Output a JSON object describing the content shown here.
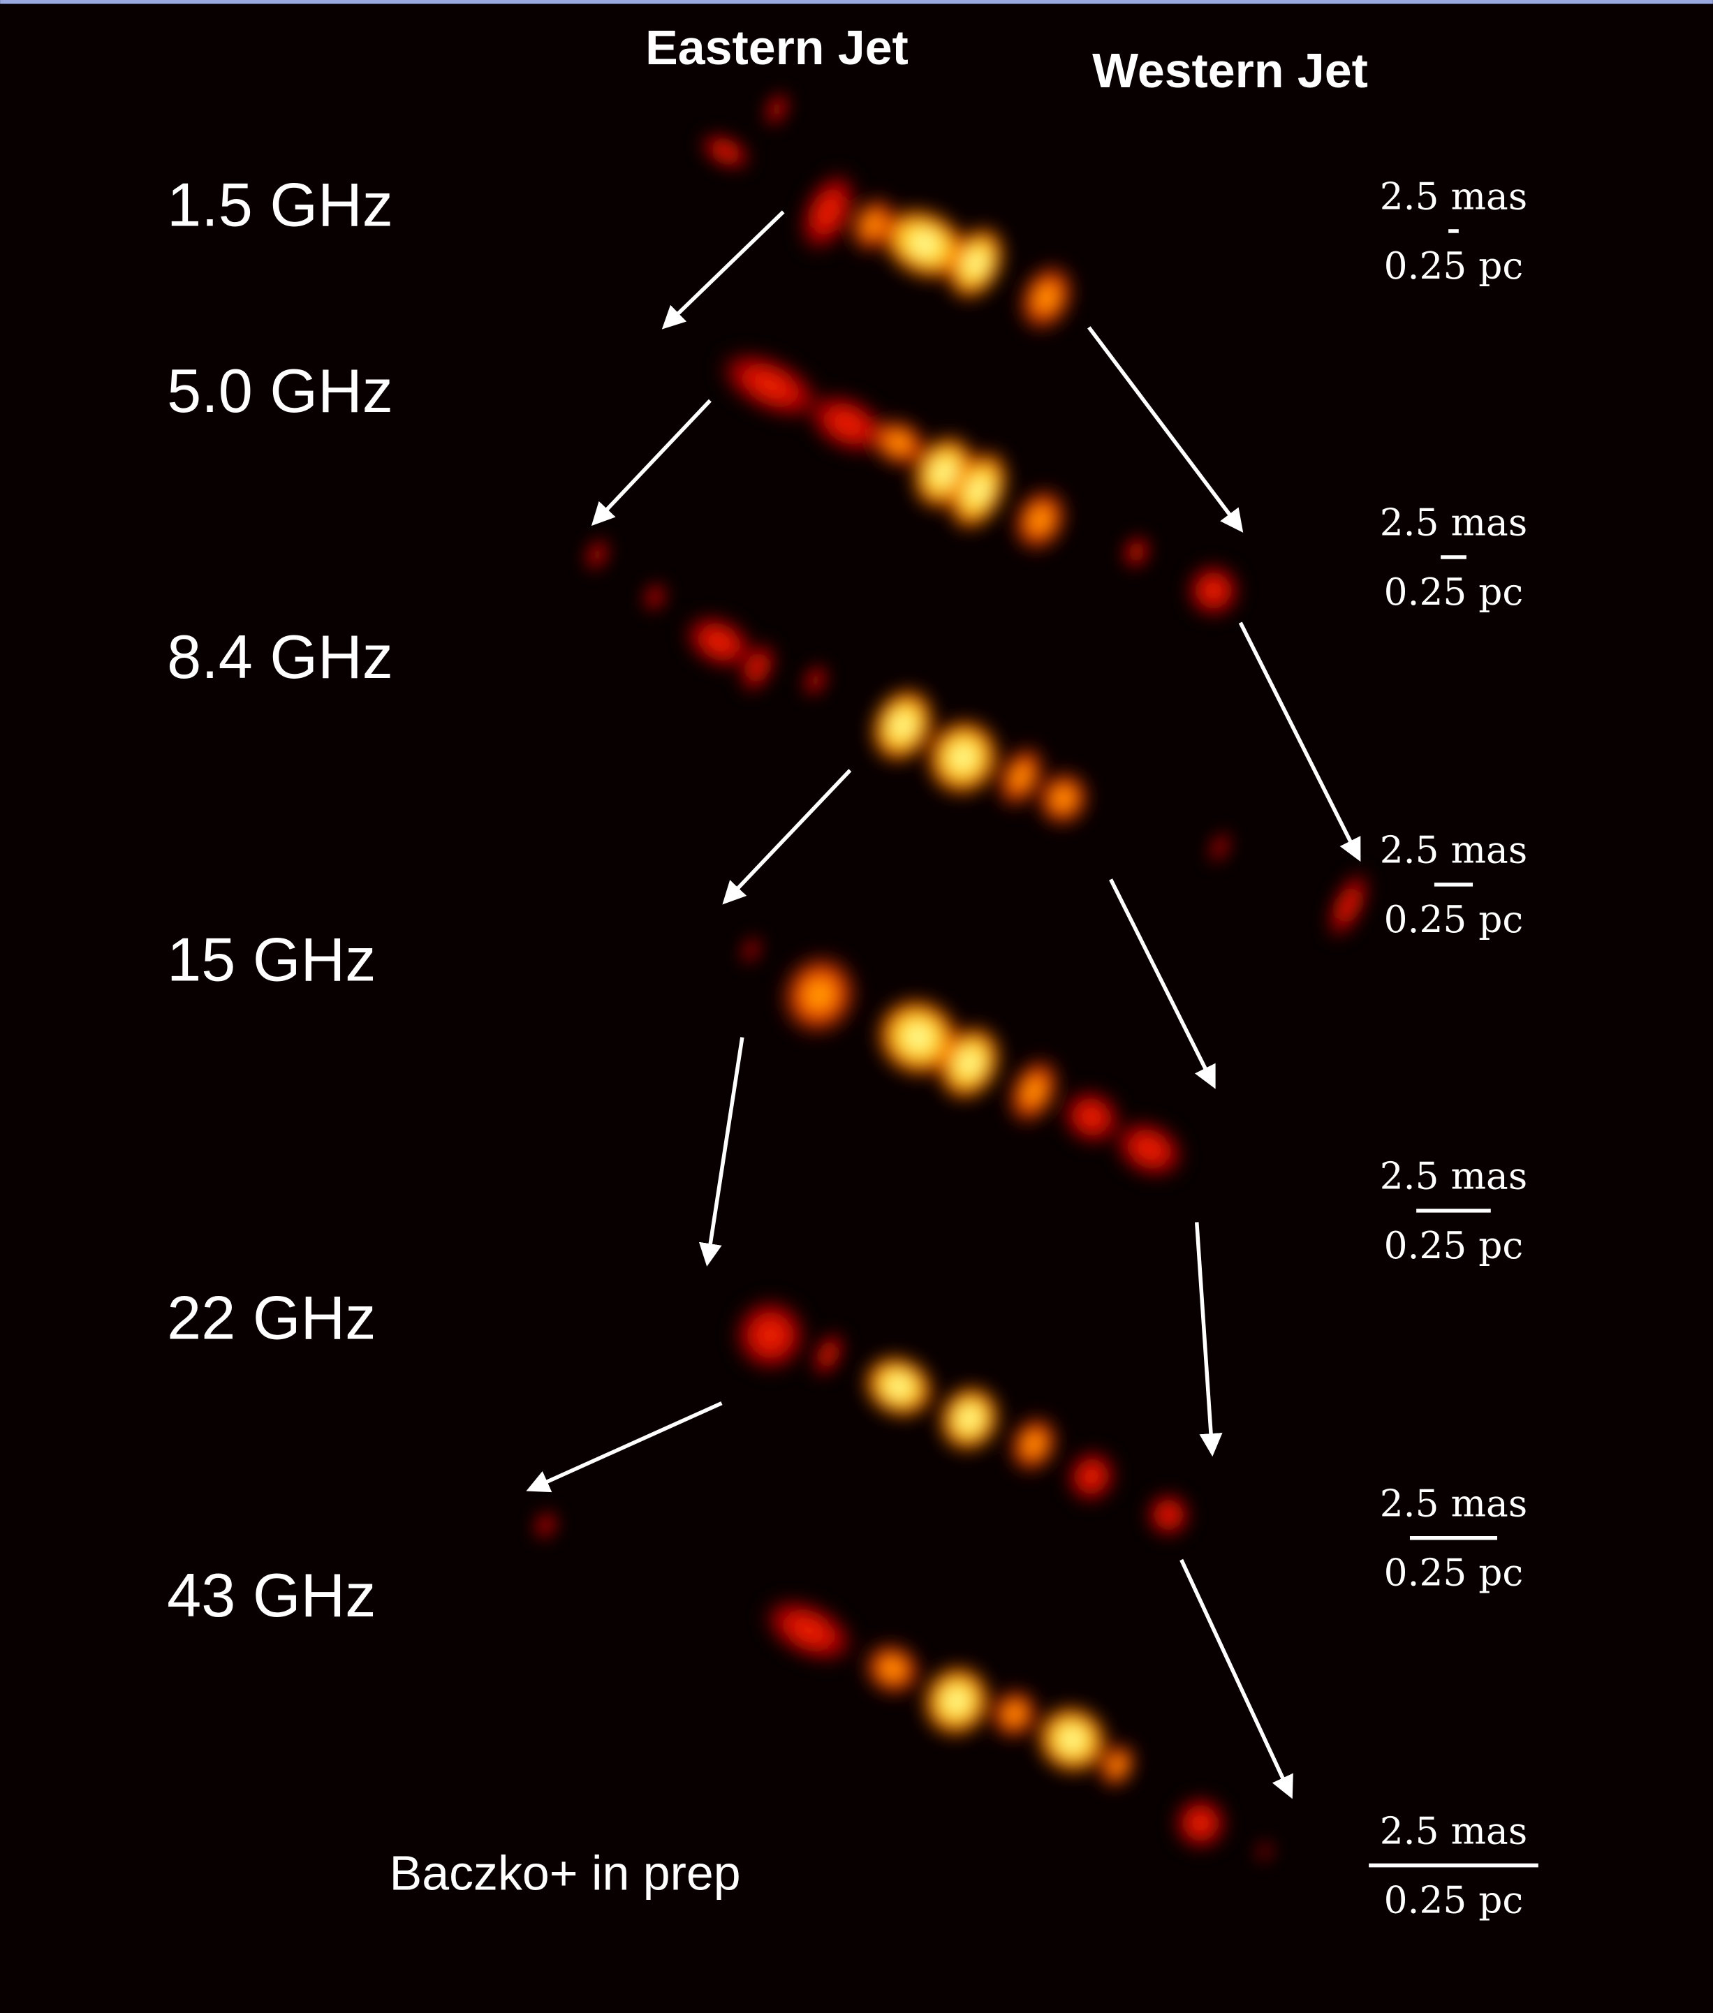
{
  "header": {
    "left": "Eastern Jet",
    "right": "Western Jet"
  },
  "panels": [
    {
      "frequency": "1.5 GHz",
      "scale_top": "2.5 mas",
      "scale_bottom": "0.25 pc"
    },
    {
      "frequency": "5.0 GHz",
      "scale_top": "2.5 mas",
      "scale_bottom": "0.25 pc"
    },
    {
      "frequency": "8.4 GHz",
      "scale_top": "2.5 mas",
      "scale_bottom": "0.25 pc"
    },
    {
      "frequency": "15 GHz",
      "scale_top": "2.5 mas",
      "scale_bottom": "0.25 pc"
    },
    {
      "frequency": "22 GHz",
      "scale_top": "2.5 mas",
      "scale_bottom": "0.25 pc"
    },
    {
      "frequency": "43 GHz",
      "scale_top": "2.5 mas",
      "scale_bottom": "0.25 pc"
    }
  ],
  "credit": "Baczko+ in prep"
}
